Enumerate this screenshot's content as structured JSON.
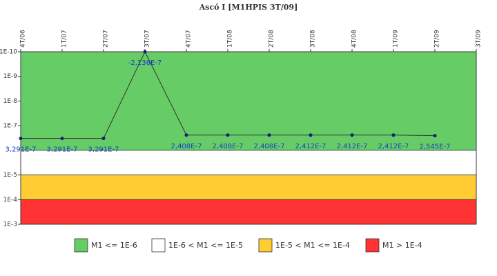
{
  "chart_data": {
    "type": "line",
    "title": "Ascó I [M1HPIS 3T/09]",
    "categories": [
      "4T/06",
      "1T/07",
      "2T/07",
      "3T/07",
      "4T/07",
      "1T/08",
      "2T/08",
      "3T/08",
      "4T/08",
      "1T/09",
      "2T/09",
      "3T/09"
    ],
    "series": [
      {
        "name": "M1",
        "color": "#333333",
        "marker_color": "#1a1a80",
        "values": [
          3.291e-07,
          3.291e-07,
          3.291e-07,
          -2.136e-07,
          2.408e-07,
          2.408e-07,
          2.408e-07,
          2.412e-07,
          2.412e-07,
          2.412e-07,
          2.545e-07,
          null
        ],
        "value_labels": [
          "3,291E-7",
          "3,291E-7",
          "3,291E-7",
          "-2,136E-7",
          "2,408E-7",
          "2,408E-7",
          "2,408E-7",
          "2,412E-7",
          "2,412E-7",
          "2,412E-7",
          "2,545E-7",
          null
        ]
      }
    ],
    "log_scale": true,
    "y_inverted": true,
    "ylim": [
      1e-10,
      0.001
    ],
    "yticks": [
      {
        "value": 1e-10,
        "label": "1E-10"
      },
      {
        "value": 1e-09,
        "label": "1E-9"
      },
      {
        "value": 1e-08,
        "label": "1E-8"
      },
      {
        "value": 1e-07,
        "label": "1E-7"
      },
      {
        "value": 1e-05,
        "label": "1E-5"
      },
      {
        "value": 0.0001,
        "label": "1E-4"
      },
      {
        "value": 0.001,
        "label": "1E-3"
      }
    ],
    "bands": [
      {
        "name": "M1 <= 1E-6",
        "from": 1e-10,
        "to": 1e-06,
        "color": "#66cc66"
      },
      {
        "name": "1E-6 < M1 <= 1E-5",
        "from": 1e-06,
        "to": 1e-05,
        "color": "#ffffff"
      },
      {
        "name": "1E-5 < M1 <= 1E-4",
        "from": 1e-05,
        "to": 0.0001,
        "color": "#ffcc33"
      },
      {
        "name": "M1 > 1E-4",
        "from": 0.0001,
        "to": 0.001,
        "color": "#ff3333"
      }
    ]
  }
}
